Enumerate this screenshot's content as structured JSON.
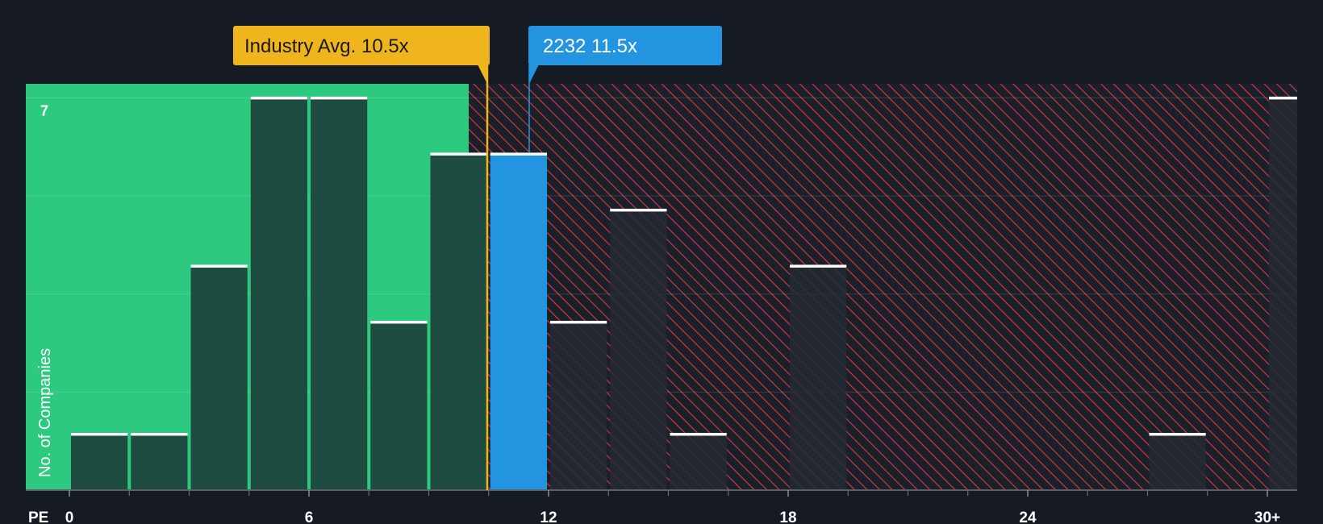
{
  "chart_data": {
    "type": "bar",
    "title": "",
    "xlabel": "PE",
    "ylabel": "No. of Companies",
    "xlim": [
      -1.5,
      30.9
    ],
    "ylim": [
      0,
      7.25
    ],
    "x_ticks": [
      {
        "value": 0,
        "label": "0"
      },
      {
        "value": 6,
        "label": "6"
      },
      {
        "value": 12,
        "label": "12"
      },
      {
        "value": 18,
        "label": "18"
      },
      {
        "value": 24,
        "label": "24"
      },
      {
        "value": 30,
        "label": "30+"
      }
    ],
    "minor_ticks": [
      1.5,
      3,
      4.5,
      7.5,
      9,
      10.5,
      13.5,
      15,
      16.5,
      19.5,
      21,
      22.5,
      25.5,
      27,
      28.5
    ],
    "y_ticks": [
      {
        "value": 7,
        "label": "7"
      }
    ],
    "bin_width": 1.5,
    "bins": [
      {
        "start": 0,
        "value": 1
      },
      {
        "start": 1.5,
        "value": 1
      },
      {
        "start": 3,
        "value": 4
      },
      {
        "start": 4.5,
        "value": 7
      },
      {
        "start": 6,
        "value": 7
      },
      {
        "start": 7.5,
        "value": 3
      },
      {
        "start": 9,
        "value": 6
      },
      {
        "start": 10.5,
        "value": 6,
        "highlight": true
      },
      {
        "start": 12,
        "value": 3
      },
      {
        "start": 13.5,
        "value": 5
      },
      {
        "start": 15,
        "value": 1
      },
      {
        "start": 16.5,
        "value": 0
      },
      {
        "start": 18,
        "value": 4
      },
      {
        "start": 19.5,
        "value": 0
      },
      {
        "start": 21,
        "value": 0
      },
      {
        "start": 22.5,
        "value": 0
      },
      {
        "start": 24,
        "value": 0
      },
      {
        "start": 25.5,
        "value": 0
      },
      {
        "start": 27,
        "value": 1
      },
      {
        "start": 28.5,
        "value": 0
      },
      {
        "start": 30,
        "value": 7
      }
    ],
    "regions": {
      "below_average_end": 10.5
    },
    "annotations": [
      {
        "name": "industry-average",
        "text": "Industry Avg. 10.5x",
        "value": 10.5
      },
      {
        "name": "company",
        "text": "2232 11.5x",
        "value": 11.5
      }
    ],
    "colors": {
      "background": "#151a23",
      "green_region": "#2dc97e",
      "green_bar": "#1f4c40",
      "red_hatch": "#e0393e",
      "red_bar": "#252a34",
      "highlight_bar": "#2394e0",
      "industry_label_bg": "#f0b41d",
      "company_label_bg": "#2394e0",
      "bar_cap": "#ffffff",
      "axis_text": "#ffffff"
    }
  }
}
